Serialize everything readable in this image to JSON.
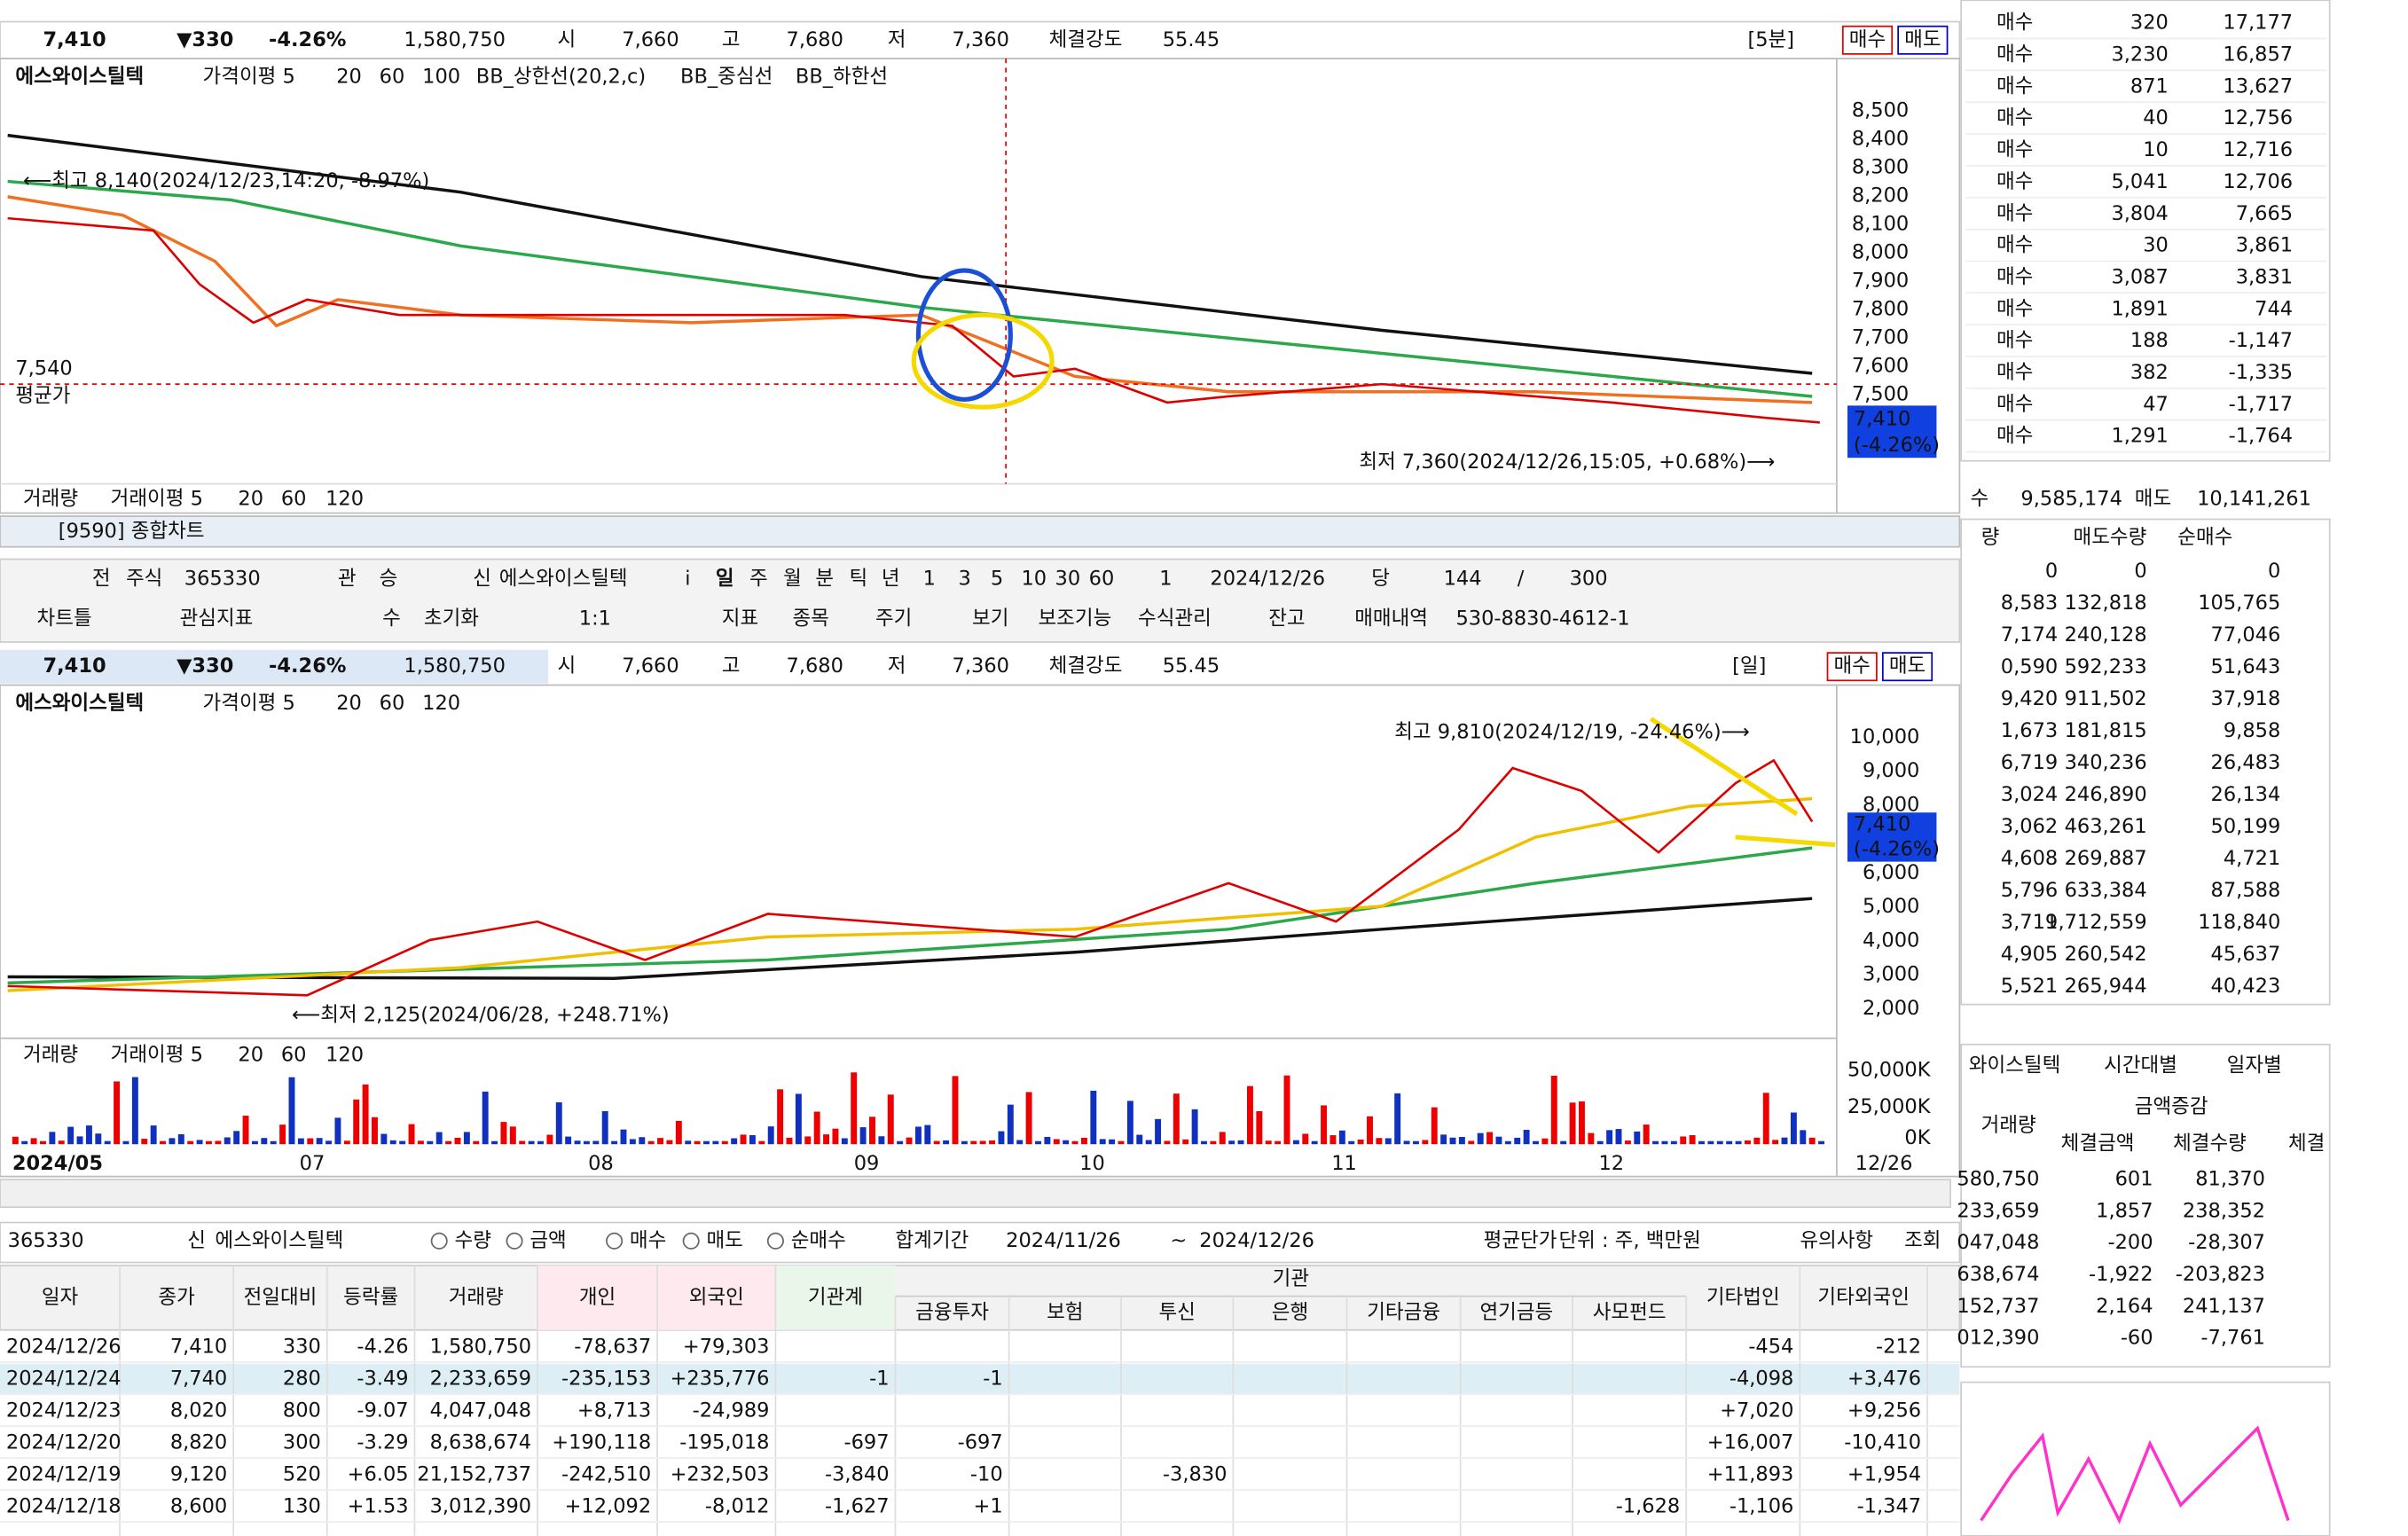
{
  "quote1": {
    "price": "7,410",
    "change": "▼330",
    "rate": "-4.26%",
    "volume": "1,580,750",
    "open_label": "시",
    "open": "7,660",
    "high_label": "고",
    "high": "7,680",
    "low_label": "저",
    "low": "7,360",
    "strength_label": "체결강도",
    "strength": "55.45",
    "period": "[5분]",
    "buy": "매수",
    "sell": "매도"
  },
  "chart1": {
    "legend": [
      "에스와이스틸텍",
      "가격이평 5",
      "20",
      "60",
      "100",
      "BB_상한선(20,2,c)",
      "BB_중심선",
      "BB_하한선"
    ],
    "yticks": [
      "8,500",
      "8,400",
      "8,300",
      "8,200",
      "8,100",
      "8,000",
      "7,900",
      "7,800",
      "7,700",
      "7,600",
      "7,500"
    ],
    "high_note": "⟵최고 8,140(2024/12/23,14:20, -8.97%)",
    "low_note": "최저 7,360(2024/12/26,15:05, +0.68%)⟶",
    "avg_price": "7,540",
    "avg_label": "평균가",
    "price_tag": "7,410",
    "price_tag_rate": "(-4.26%)",
    "volume_legend": [
      "거래량",
      "거래이평 5",
      "20",
      "60",
      "120"
    ]
  },
  "orderbook": {
    "rows": [
      [
        "매수",
        "320",
        "17,177"
      ],
      [
        "매수",
        "3,230",
        "16,857"
      ],
      [
        "매수",
        "871",
        "13,627"
      ],
      [
        "매수",
        "40",
        "12,756"
      ],
      [
        "매수",
        "10",
        "12,716"
      ],
      [
        "매수",
        "5,041",
        "12,706"
      ],
      [
        "매수",
        "3,804",
        "7,665"
      ],
      [
        "매수",
        "30",
        "3,861"
      ],
      [
        "매수",
        "3,087",
        "3,831"
      ],
      [
        "매수",
        "1,891",
        "744"
      ],
      [
        "매수",
        "188",
        "-1,147"
      ],
      [
        "매수",
        "382",
        "-1,335"
      ],
      [
        "매수",
        "47",
        "-1,717"
      ],
      [
        "매수",
        "1,291",
        "-1,764"
      ]
    ],
    "total_buy_label": "수",
    "total_buy": "9,585,174",
    "total_sell_label": "매도",
    "total_sell": "10,141,261"
  },
  "investor_panel": {
    "headers": [
      "량",
      "매도수량",
      "순매수"
    ],
    "rows": [
      [
        "0",
        "0",
        "0"
      ],
      [
        "8,583",
        "132,818",
        "105,765"
      ],
      [
        "7,174",
        "240,128",
        "77,046"
      ],
      [
        "0,590",
        "592,233",
        "51,643"
      ],
      [
        "9,420",
        "911,502",
        "37,918"
      ],
      [
        "1,673",
        "181,815",
        "9,858"
      ],
      [
        "6,719",
        "340,236",
        "26,483"
      ],
      [
        "3,024",
        "246,890",
        "26,134"
      ],
      [
        "3,062",
        "463,261",
        "50,199"
      ],
      [
        "4,608",
        "269,887",
        "4,721"
      ],
      [
        "5,796",
        "633,384",
        "87,588"
      ],
      [
        "3,719",
        "1,712,559",
        "118,840"
      ],
      [
        "4,905",
        "260,542",
        "45,637"
      ],
      [
        "5,521",
        "265,944",
        "40,423"
      ]
    ]
  },
  "trade_panel": {
    "stock": "와이스틸텍",
    "tab_time": "시간대별",
    "tab_day": "일자별",
    "headers": [
      "거래량",
      "금액증감",
      "체결금액",
      "체결수량",
      "체결"
    ],
    "rows": [
      [
        "580,750",
        "601",
        "81,370"
      ],
      [
        "233,659",
        "1,857",
        "238,352"
      ],
      [
        "047,048",
        "-200",
        "-28,307"
      ],
      [
        "638,674",
        "-1,922",
        "-203,823"
      ],
      [
        "152,737",
        "2,164",
        "241,137"
      ],
      [
        "012,390",
        "-60",
        "-7,761"
      ]
    ]
  },
  "window": {
    "title": "[9590] 종합차트",
    "toolbar1": [
      "전",
      "주식",
      "365330",
      "관",
      "승",
      "신",
      "에스와이스틸텍",
      "i",
      "일",
      "주",
      "월",
      "분",
      "틱",
      "년",
      "1",
      "3",
      "5",
      "10",
      "30",
      "60",
      "1",
      "2024/12/26",
      "당",
      "144",
      "/",
      "300"
    ],
    "toolbar2": [
      "차트틀",
      "관심지표",
      "수",
      "초기화",
      "1:1",
      "지표",
      "종목",
      "주기",
      "보기",
      "보조기능",
      "수식관리",
      "잔고",
      "매매내역",
      "530-8830-4612-1"
    ]
  },
  "quote2": {
    "price": "7,410",
    "change": "▼330",
    "rate": "-4.26%",
    "volume": "1,580,750",
    "open_label": "시",
    "open": "7,660",
    "high_label": "고",
    "high": "7,680",
    "low_label": "저",
    "low": "7,360",
    "strength_label": "체결강도",
    "strength": "55.45",
    "period": "[일]",
    "buy": "매수",
    "sell": "매도"
  },
  "chart2": {
    "legend": [
      "에스와이스틸텍",
      "가격이평 5",
      "20",
      "60",
      "120"
    ],
    "yticks": [
      "10,000",
      "9,000",
      "8,000",
      "7,000",
      "6,000",
      "5,000",
      "4,000",
      "3,000",
      "2,000"
    ],
    "high_note": "최고 9,810(2024/12/19, -24.46%)⟶",
    "low_note": "⟵최저 2,125(2024/06/28, +248.71%)",
    "price_tag": "7,410",
    "price_tag_rate": "(-4.26%)",
    "volume_legend": [
      "거래량",
      "거래이평 5",
      "20",
      "60",
      "120"
    ],
    "volume_ticks": [
      "50,000K",
      "25,000K",
      "0K"
    ],
    "xlabels": [
      "2024/05",
      "07",
      "08",
      "09",
      "10",
      "11",
      "12",
      "12/26"
    ]
  },
  "form": {
    "code": "365330",
    "credit": "신",
    "stock": "에스와이스틸텍",
    "options": [
      "수량",
      "금액",
      "매수",
      "매도",
      "순매수"
    ],
    "period_label": "합계기간",
    "from": "2024/11/26",
    "tilde": "~",
    "to": "2024/12/26",
    "avg_price": "평균단가",
    "unit": "단위 : 주, 백만원",
    "notice": "유의사항",
    "search": "조회"
  },
  "table": {
    "group": "기관",
    "headers": [
      "일자",
      "종가",
      "전일대비",
      "등락률",
      "거래량",
      "개인",
      "외국인",
      "기관계",
      "금융투자",
      "보험",
      "투신",
      "은행",
      "기타금융",
      "연기금등",
      "사모펀드",
      "기타법인",
      "기타외국인"
    ],
    "rows": [
      [
        "2024/12/26",
        "7,410",
        "330",
        "-4.26",
        "1,580,750",
        "-78,637",
        "+79,303",
        null,
        null,
        null,
        null,
        null,
        null,
        null,
        null,
        "-454",
        "-212"
      ],
      [
        "2024/12/24",
        "7,740",
        "280",
        "-3.49",
        "2,233,659",
        "-235,153",
        "+235,776",
        "-1",
        "-1",
        null,
        null,
        null,
        null,
        null,
        null,
        "-4,098",
        "+3,476"
      ],
      [
        "2024/12/23",
        "8,020",
        "800",
        "-9.07",
        "4,047,048",
        "+8,713",
        "-24,989",
        null,
        null,
        null,
        null,
        null,
        null,
        null,
        null,
        "+7,020",
        "+9,256"
      ],
      [
        "2024/12/20",
        "8,820",
        "300",
        "-3.29",
        "8,638,674",
        "+190,118",
        "-195,018",
        "-697",
        "-697",
        null,
        null,
        null,
        null,
        null,
        null,
        "+16,007",
        "-10,410"
      ],
      [
        "2024/12/19",
        "9,120",
        "520",
        "+6.05",
        "21,152,737",
        "-242,510",
        "+232,503",
        "-3,840",
        "-10",
        null,
        "-3,830",
        null,
        null,
        null,
        null,
        "+11,893",
        "+1,954"
      ],
      [
        "2024/12/18",
        "8,600",
        "130",
        "+1.53",
        "3,012,390",
        "+12,092",
        "-8,012",
        "-1,627",
        "+1",
        null,
        null,
        null,
        null,
        null,
        "-1,628",
        "-1,106",
        "-1,347"
      ]
    ]
  }
}
